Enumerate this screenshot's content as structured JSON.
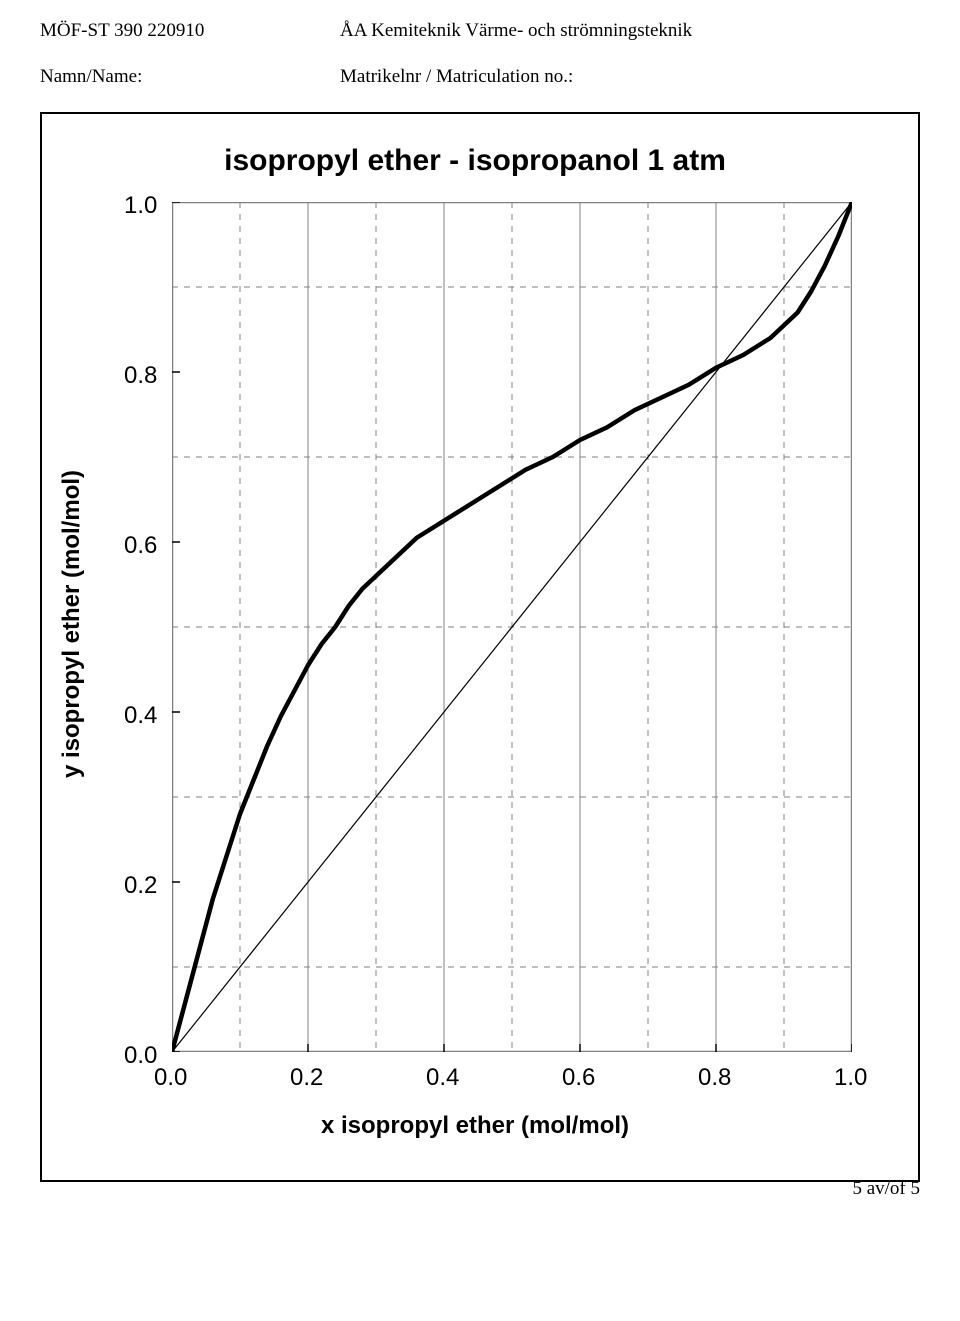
{
  "header": {
    "left1": "MÖF-ST 390 220910",
    "right1": "ÅA Kemiteknik Värme- och strömningsteknik",
    "left2": "Namn/Name:",
    "right2": "Matrikelnr / Matriculation no.:"
  },
  "chart": {
    "type": "line",
    "title": "isopropyl ether - isopropanol 1 atm",
    "xlabel": "x isopropyl ether (mol/mol)",
    "ylabel": "y isopropyl ether (mol/mol)",
    "xlim": [
      0.0,
      1.0
    ],
    "ylim": [
      0.0,
      1.0
    ],
    "xticks": [
      0.0,
      0.2,
      0.4,
      0.6,
      0.8,
      1.0
    ],
    "yticks": [
      0.0,
      0.2,
      0.4,
      0.6,
      0.8,
      1.0
    ],
    "xtick_labels": [
      "0.0",
      "0.2",
      "0.4",
      "0.6",
      "0.8",
      "1.0"
    ],
    "ytick_labels": [
      "0.0",
      "0.2",
      "0.4",
      "0.6",
      "0.8",
      "1.0"
    ],
    "minor_grid_step": 0.1,
    "background_color": "#ffffff",
    "major_grid_color": "#808080",
    "minor_grid_color": "#808080",
    "border_color": "#808080",
    "diagonal": {
      "color": "#000000",
      "width": 1.2,
      "points": [
        [
          0.0,
          0.0
        ],
        [
          1.0,
          1.0
        ]
      ]
    },
    "equilibrium_curve": {
      "color": "#000000",
      "width": 4.5,
      "points": [
        [
          0.0,
          0.0
        ],
        [
          0.02,
          0.06
        ],
        [
          0.04,
          0.12
        ],
        [
          0.06,
          0.18
        ],
        [
          0.08,
          0.23
        ],
        [
          0.1,
          0.28
        ],
        [
          0.12,
          0.32
        ],
        [
          0.14,
          0.36
        ],
        [
          0.16,
          0.395
        ],
        [
          0.18,
          0.425
        ],
        [
          0.2,
          0.455
        ],
        [
          0.22,
          0.48
        ],
        [
          0.24,
          0.5
        ],
        [
          0.26,
          0.525
        ],
        [
          0.28,
          0.545
        ],
        [
          0.3,
          0.56
        ],
        [
          0.32,
          0.575
        ],
        [
          0.34,
          0.59
        ],
        [
          0.36,
          0.605
        ],
        [
          0.38,
          0.615
        ],
        [
          0.4,
          0.625
        ],
        [
          0.44,
          0.645
        ],
        [
          0.48,
          0.665
        ],
        [
          0.52,
          0.685
        ],
        [
          0.56,
          0.7
        ],
        [
          0.6,
          0.72
        ],
        [
          0.64,
          0.735
        ],
        [
          0.68,
          0.755
        ],
        [
          0.72,
          0.77
        ],
        [
          0.76,
          0.785
        ],
        [
          0.8,
          0.805
        ],
        [
          0.84,
          0.82
        ],
        [
          0.88,
          0.84
        ],
        [
          0.9,
          0.855
        ],
        [
          0.92,
          0.87
        ],
        [
          0.94,
          0.895
        ],
        [
          0.96,
          0.925
        ],
        [
          0.98,
          0.96
        ],
        [
          1.0,
          1.0
        ]
      ]
    },
    "title_fontsize": 30,
    "label_fontsize": 24,
    "tick_fontsize": 24
  },
  "footer": "5 av/of 5"
}
